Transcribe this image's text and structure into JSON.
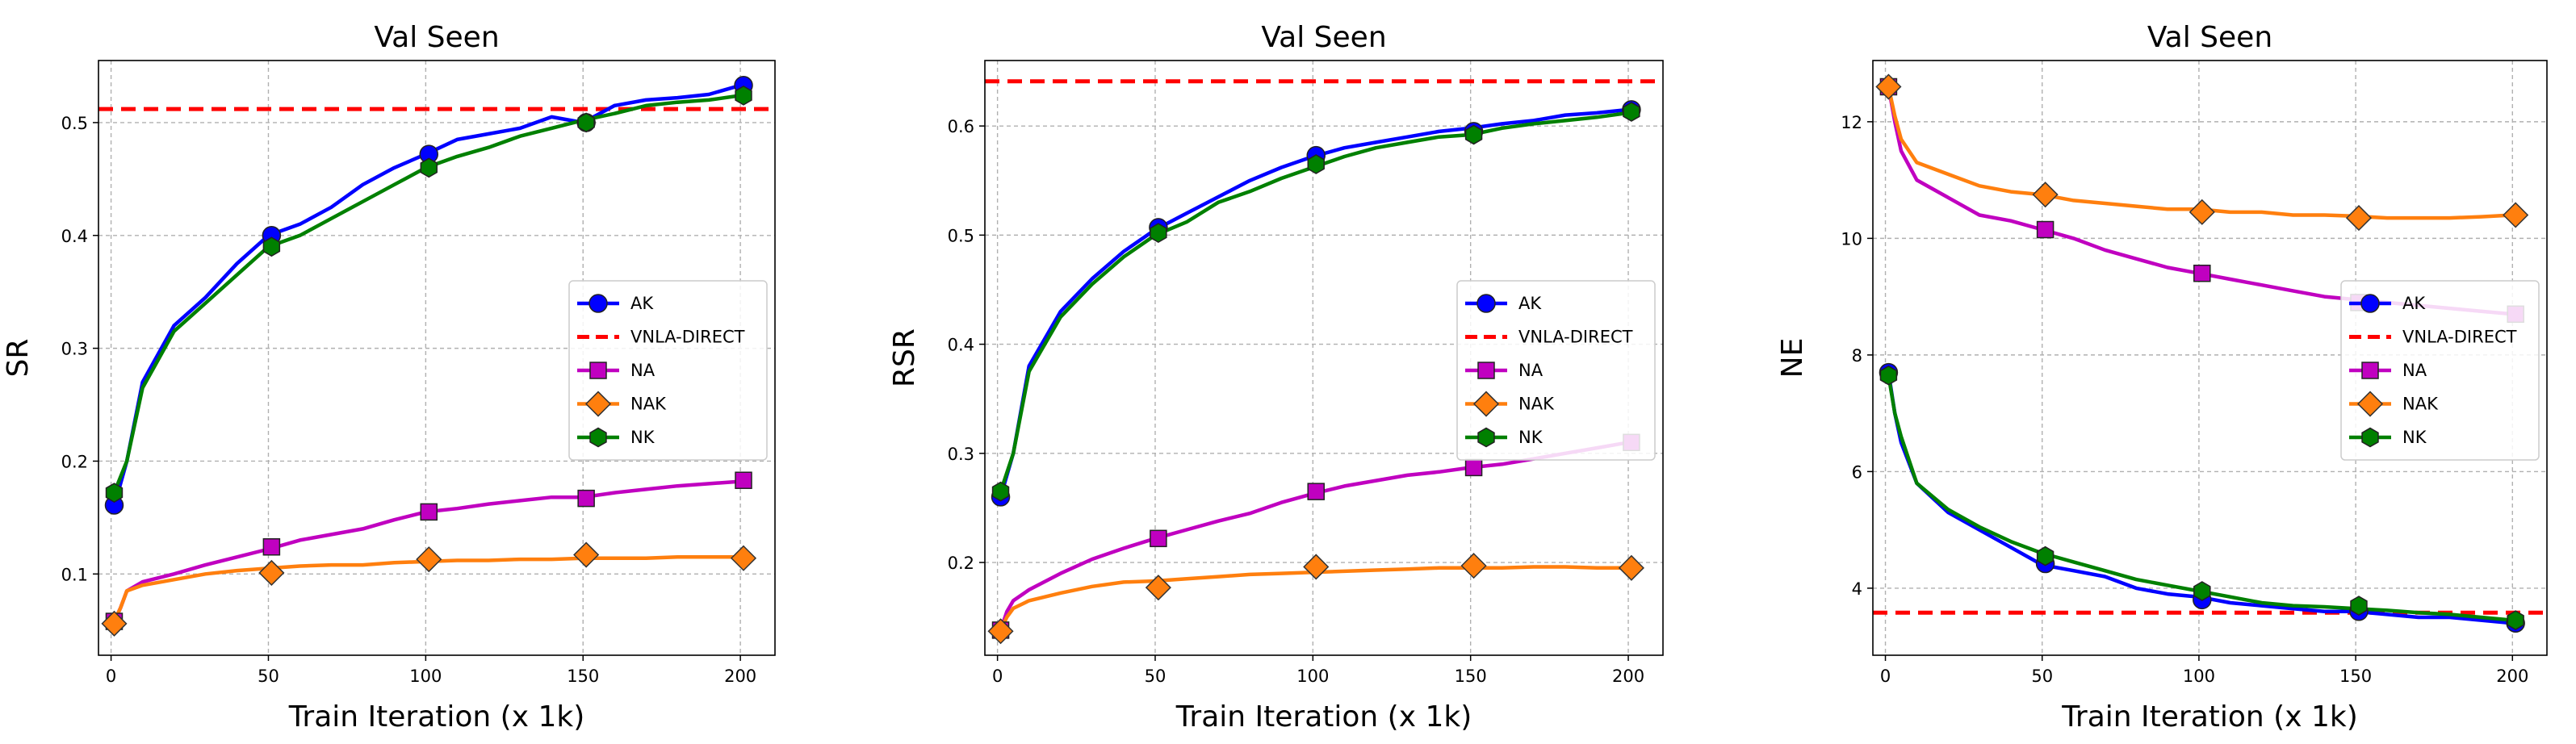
{
  "chart_data": [
    {
      "type": "line",
      "title": "Val Seen",
      "xlabel": "Train Iteration (x 1k)",
      "ylabel": "SR",
      "xlim": [
        -4,
        211
      ],
      "ylim": [
        0.028,
        0.555
      ],
      "xticks": [
        0,
        50,
        100,
        150,
        200
      ],
      "yticks": [
        0.1,
        0.2,
        0.3,
        0.4,
        0.5
      ],
      "ytick_labels": [
        "0.1",
        "0.2",
        "0.3",
        "0.4",
        "0.5"
      ],
      "grid": true,
      "legend_position": "center-right",
      "baseline": {
        "name": "VNLA-DIRECT",
        "value": 0.512,
        "color": "#ff0000"
      },
      "series": [
        {
          "name": "AK",
          "color": "#0000ff",
          "marker": "circle",
          "x": [
            1,
            5,
            10,
            20,
            30,
            40,
            50,
            60,
            70,
            80,
            90,
            100,
            110,
            120,
            130,
            140,
            150,
            160,
            170,
            180,
            190,
            200
          ],
          "y": [
            0.16,
            0.2,
            0.27,
            0.32,
            0.345,
            0.375,
            0.4,
            0.41,
            0.425,
            0.445,
            0.46,
            0.472,
            0.485,
            0.49,
            0.495,
            0.505,
            0.5,
            0.515,
            0.52,
            0.522,
            0.525,
            0.533
          ],
          "marker_x": [
            1,
            51,
            101,
            151,
            201
          ],
          "marker_y": [
            0.161,
            0.4,
            0.472,
            0.5,
            0.533
          ]
        },
        {
          "name": "NA",
          "color": "#c000c0",
          "marker": "square",
          "x": [
            1,
            3,
            5,
            10,
            20,
            30,
            40,
            50,
            60,
            70,
            80,
            90,
            100,
            110,
            120,
            130,
            140,
            150,
            160,
            170,
            180,
            190,
            200
          ],
          "y": [
            0.058,
            0.07,
            0.085,
            0.093,
            0.1,
            0.108,
            0.115,
            0.122,
            0.13,
            0.135,
            0.14,
            0.148,
            0.155,
            0.158,
            0.162,
            0.165,
            0.168,
            0.168,
            0.172,
            0.175,
            0.178,
            0.18,
            0.182
          ],
          "marker_x": [
            1,
            51,
            101,
            151,
            201
          ],
          "marker_y": [
            0.058,
            0.124,
            0.155,
            0.167,
            0.183
          ]
        },
        {
          "name": "NAK",
          "color": "#ff7f0e",
          "marker": "diamond",
          "x": [
            1,
            3,
            5,
            10,
            20,
            30,
            40,
            50,
            60,
            70,
            80,
            90,
            100,
            110,
            120,
            130,
            140,
            150,
            160,
            170,
            180,
            190,
            200
          ],
          "y": [
            0.058,
            0.07,
            0.085,
            0.09,
            0.095,
            0.1,
            0.103,
            0.105,
            0.107,
            0.108,
            0.108,
            0.11,
            0.111,
            0.112,
            0.112,
            0.113,
            0.113,
            0.114,
            0.114,
            0.114,
            0.115,
            0.115,
            0.115
          ],
          "marker_x": [
            1,
            51,
            101,
            151,
            201
          ],
          "marker_y": [
            0.056,
            0.101,
            0.113,
            0.117,
            0.114
          ]
        },
        {
          "name": "NK",
          "color": "#008000",
          "marker": "hexagon",
          "x": [
            1,
            5,
            10,
            20,
            30,
            40,
            50,
            60,
            70,
            80,
            90,
            100,
            110,
            120,
            130,
            140,
            150,
            160,
            170,
            180,
            190,
            200
          ],
          "y": [
            0.172,
            0.2,
            0.265,
            0.315,
            0.34,
            0.365,
            0.39,
            0.4,
            0.415,
            0.43,
            0.445,
            0.46,
            0.47,
            0.478,
            0.488,
            0.495,
            0.502,
            0.508,
            0.515,
            0.518,
            0.52,
            0.524
          ],
          "marker_x": [
            1,
            51,
            101,
            151,
            201
          ],
          "marker_y": [
            0.172,
            0.39,
            0.46,
            0.5,
            0.524
          ]
        }
      ]
    },
    {
      "type": "line",
      "title": "Val Seen",
      "xlabel": "Train Iteration (x 1k)",
      "ylabel": "RSR",
      "xlim": [
        -4,
        211
      ],
      "ylim": [
        0.115,
        0.66
      ],
      "xticks": [
        0,
        50,
        100,
        150,
        200
      ],
      "yticks": [
        0.2,
        0.3,
        0.4,
        0.5,
        0.6
      ],
      "ytick_labels": [
        "0.2",
        "0.3",
        "0.4",
        "0.5",
        "0.6"
      ],
      "grid": true,
      "legend_position": "center-right",
      "baseline": {
        "name": "VNLA-DIRECT",
        "value": 0.641,
        "color": "#ff0000"
      },
      "series": [
        {
          "name": "AK",
          "color": "#0000ff",
          "marker": "circle",
          "x": [
            1,
            5,
            10,
            20,
            30,
            40,
            50,
            60,
            70,
            80,
            90,
            100,
            110,
            120,
            130,
            140,
            150,
            160,
            170,
            180,
            190,
            200
          ],
          "y": [
            0.26,
            0.3,
            0.38,
            0.43,
            0.46,
            0.485,
            0.505,
            0.52,
            0.535,
            0.55,
            0.562,
            0.572,
            0.58,
            0.585,
            0.59,
            0.595,
            0.598,
            0.602,
            0.605,
            0.61,
            0.612,
            0.615
          ],
          "marker_x": [
            1,
            51,
            101,
            151,
            201
          ],
          "marker_y": [
            0.26,
            0.507,
            0.573,
            0.595,
            0.615
          ]
        },
        {
          "name": "NA",
          "color": "#c000c0",
          "marker": "square",
          "x": [
            1,
            3,
            5,
            10,
            20,
            30,
            40,
            50,
            60,
            70,
            80,
            90,
            100,
            110,
            120,
            130,
            140,
            150,
            160,
            170,
            180,
            190,
            200
          ],
          "y": [
            0.138,
            0.155,
            0.165,
            0.175,
            0.19,
            0.203,
            0.213,
            0.222,
            0.23,
            0.238,
            0.245,
            0.255,
            0.263,
            0.27,
            0.275,
            0.28,
            0.283,
            0.287,
            0.29,
            0.295,
            0.3,
            0.305,
            0.31
          ],
          "marker_x": [
            1,
            51,
            101,
            151,
            201
          ],
          "marker_y": [
            0.138,
            0.222,
            0.265,
            0.287,
            0.31
          ]
        },
        {
          "name": "NAK",
          "color": "#ff7f0e",
          "marker": "diamond",
          "x": [
            1,
            3,
            5,
            10,
            20,
            30,
            40,
            50,
            60,
            70,
            80,
            90,
            100,
            110,
            120,
            130,
            140,
            150,
            160,
            170,
            180,
            190,
            200
          ],
          "y": [
            0.138,
            0.15,
            0.158,
            0.165,
            0.172,
            0.178,
            0.182,
            0.183,
            0.185,
            0.187,
            0.189,
            0.19,
            0.191,
            0.192,
            0.193,
            0.194,
            0.195,
            0.195,
            0.195,
            0.196,
            0.196,
            0.195,
            0.195
          ],
          "marker_x": [
            1,
            51,
            101,
            151,
            201
          ],
          "marker_y": [
            0.137,
            0.177,
            0.196,
            0.197,
            0.195
          ]
        },
        {
          "name": "NK",
          "color": "#008000",
          "marker": "hexagon",
          "x": [
            1,
            5,
            10,
            20,
            30,
            40,
            50,
            60,
            70,
            80,
            90,
            100,
            110,
            120,
            130,
            140,
            150,
            160,
            170,
            180,
            190,
            200
          ],
          "y": [
            0.265,
            0.3,
            0.375,
            0.425,
            0.455,
            0.48,
            0.5,
            0.512,
            0.53,
            0.54,
            0.552,
            0.562,
            0.572,
            0.58,
            0.585,
            0.59,
            0.592,
            0.598,
            0.602,
            0.605,
            0.608,
            0.612
          ],
          "marker_x": [
            1,
            51,
            101,
            151,
            201
          ],
          "marker_y": [
            0.265,
            0.502,
            0.565,
            0.592,
            0.613
          ]
        }
      ]
    },
    {
      "type": "line",
      "title": "Val Seen",
      "xlabel": "Train Iteration (x 1k)",
      "ylabel": "NE",
      "xlim": [
        -4,
        211
      ],
      "ylim": [
        2.85,
        13.05
      ],
      "xticks": [
        0,
        50,
        100,
        150,
        200
      ],
      "yticks": [
        4,
        6,
        8,
        10,
        12
      ],
      "ytick_labels": [
        "4",
        "6",
        "8",
        "10",
        "12"
      ],
      "grid": true,
      "legend_position": "center-right",
      "baseline": {
        "name": "VNLA-DIRECT",
        "value": 3.58,
        "color": "#ff0000"
      },
      "series": [
        {
          "name": "AK",
          "color": "#0000ff",
          "marker": "circle",
          "x": [
            1,
            3,
            5,
            10,
            20,
            30,
            40,
            50,
            60,
            70,
            80,
            90,
            100,
            110,
            120,
            130,
            140,
            150,
            160,
            170,
            180,
            190,
            200
          ],
          "y": [
            7.7,
            7.0,
            6.5,
            5.8,
            5.3,
            5.0,
            4.7,
            4.4,
            4.3,
            4.2,
            4.0,
            3.9,
            3.85,
            3.75,
            3.7,
            3.65,
            3.6,
            3.6,
            3.55,
            3.5,
            3.5,
            3.45,
            3.4
          ],
          "marker_x": [
            1,
            51,
            101,
            151,
            201
          ],
          "marker_y": [
            7.7,
            4.42,
            3.8,
            3.6,
            3.4
          ]
        },
        {
          "name": "NA",
          "color": "#c000c0",
          "marker": "square",
          "x": [
            1,
            3,
            5,
            10,
            20,
            30,
            40,
            50,
            60,
            70,
            80,
            90,
            100,
            110,
            120,
            130,
            140,
            150,
            160,
            170,
            180,
            190,
            200
          ],
          "y": [
            12.6,
            12.0,
            11.5,
            11.0,
            10.7,
            10.4,
            10.3,
            10.15,
            10.0,
            9.8,
            9.65,
            9.5,
            9.4,
            9.3,
            9.2,
            9.1,
            9.0,
            8.95,
            8.9,
            8.85,
            8.8,
            8.75,
            8.7
          ],
          "marker_x": [
            1,
            51,
            101,
            151,
            201
          ],
          "marker_y": [
            12.6,
            10.15,
            9.4,
            8.9,
            8.7
          ]
        },
        {
          "name": "NAK",
          "color": "#ff7f0e",
          "marker": "diamond",
          "x": [
            1,
            3,
            5,
            10,
            20,
            30,
            40,
            50,
            60,
            70,
            80,
            90,
            100,
            110,
            120,
            130,
            140,
            150,
            160,
            170,
            180,
            190,
            200
          ],
          "y": [
            12.6,
            12.1,
            11.7,
            11.3,
            11.1,
            10.9,
            10.8,
            10.75,
            10.65,
            10.6,
            10.55,
            10.5,
            10.5,
            10.45,
            10.45,
            10.4,
            10.4,
            10.38,
            10.35,
            10.35,
            10.35,
            10.37,
            10.4
          ],
          "marker_x": [
            1,
            51,
            101,
            151,
            201
          ],
          "marker_y": [
            12.6,
            10.75,
            10.45,
            10.35,
            10.4
          ]
        },
        {
          "name": "NK",
          "color": "#008000",
          "marker": "hexagon",
          "x": [
            1,
            3,
            5,
            10,
            20,
            30,
            40,
            50,
            60,
            70,
            80,
            90,
            100,
            110,
            120,
            130,
            140,
            150,
            160,
            170,
            180,
            190,
            200
          ],
          "y": [
            7.65,
            7.0,
            6.6,
            5.8,
            5.35,
            5.05,
            4.8,
            4.6,
            4.45,
            4.3,
            4.15,
            4.05,
            3.95,
            3.85,
            3.75,
            3.7,
            3.68,
            3.65,
            3.62,
            3.58,
            3.55,
            3.5,
            3.45
          ],
          "marker_x": [
            1,
            51,
            101,
            151,
            201
          ],
          "marker_y": [
            7.65,
            4.55,
            3.95,
            3.7,
            3.45
          ]
        }
      ]
    }
  ]
}
